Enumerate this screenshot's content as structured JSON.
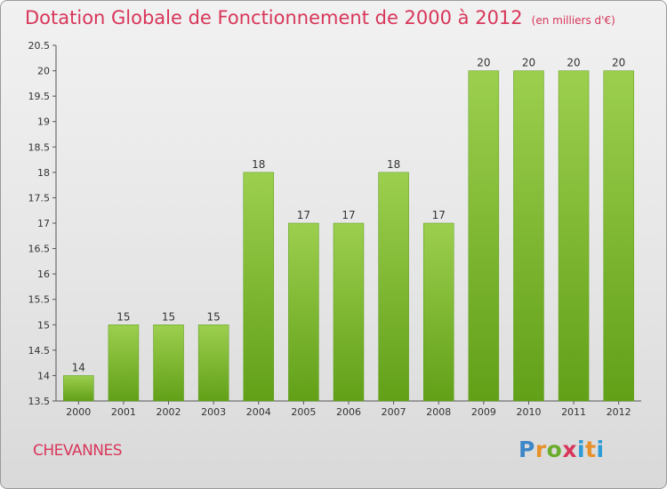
{
  "title": "Dotation Globale de Fonctionnement de 2000 à 2012",
  "subtitle": "(en milliers d'€)",
  "commune": "CHEVANNES",
  "logo": {
    "text": "Proxiti"
  },
  "colors": {
    "title": "#d8365a",
    "bar_top": "#9ccf4e",
    "bar_bottom": "#62a018"
  },
  "chart_data": {
    "type": "bar",
    "categories": [
      "2000",
      "2001",
      "2002",
      "2003",
      "2004",
      "2005",
      "2006",
      "2007",
      "2008",
      "2009",
      "2010",
      "2011",
      "2012"
    ],
    "values": [
      14,
      15,
      15,
      15,
      18,
      17,
      17,
      18,
      17,
      20,
      20,
      20,
      20
    ],
    "data_labels": [
      "14",
      "15",
      "15",
      "15",
      "18",
      "17",
      "17",
      "18",
      "17",
      "20",
      "20",
      "20",
      "20"
    ],
    "ylim": [
      13.5,
      20.5
    ],
    "yticks": [
      13.5,
      14,
      14.5,
      15,
      15.5,
      16,
      16.5,
      17,
      17.5,
      18,
      18.5,
      19,
      19.5,
      20,
      20.5
    ],
    "ytick_labels": [
      "13.5",
      "14",
      "14.5",
      "15",
      "15.5",
      "16",
      "16.5",
      "17",
      "17.5",
      "18",
      "18.5",
      "19",
      "19.5",
      "20",
      "20.5"
    ],
    "grid": false,
    "xlabel": "",
    "ylabel": ""
  }
}
